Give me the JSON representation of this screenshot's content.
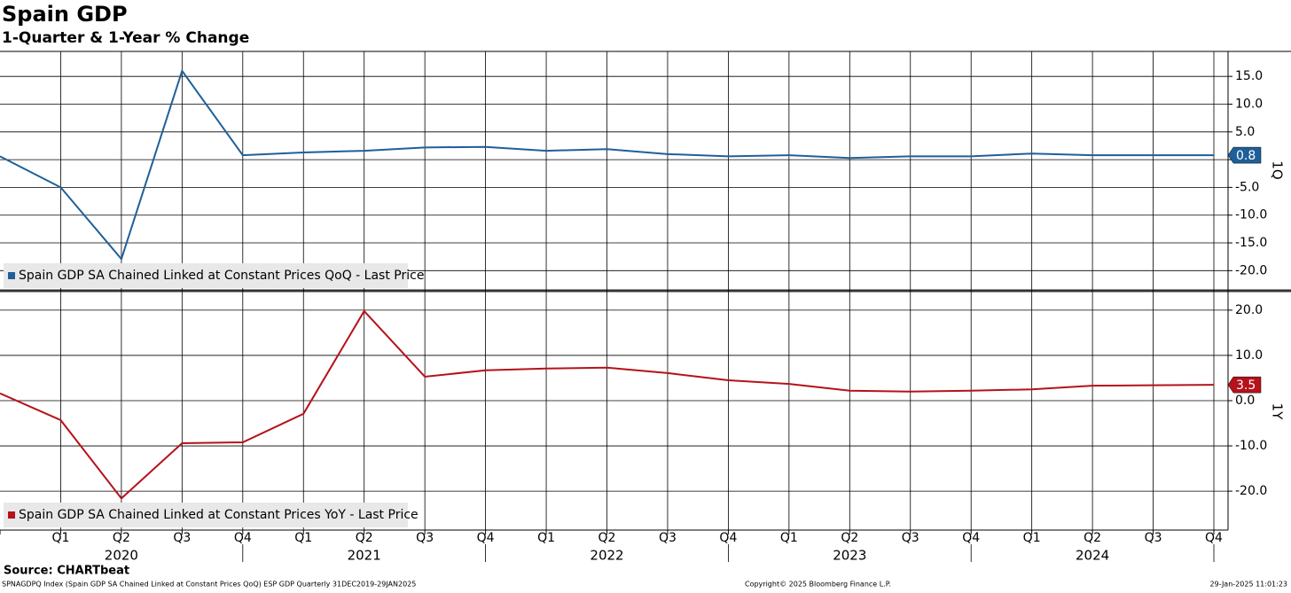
{
  "chart_data": [
    {
      "type": "line",
      "title": "Spain GDP",
      "subtitle": "1-Quarter & 1-Year % Change",
      "y_label": "1Q",
      "series": [
        {
          "name": "Spain GDP SA Chained Linked at Constant Prices QoQ - Last Price",
          "color": "#1f5f99",
          "values": [
            0.6,
            -5.0,
            -17.9,
            16.0,
            0.8,
            1.3,
            1.6,
            2.2,
            2.3,
            1.6,
            1.9,
            1.0,
            0.6,
            0.8,
            0.3,
            0.6,
            0.6,
            1.1,
            0.8,
            0.8,
            0.8
          ]
        }
      ],
      "ylim": [
        -23.3,
        19.5
      ],
      "yticks": [
        {
          "value": -20,
          "label": "-20.0"
        },
        {
          "value": -15,
          "label": "-15.0"
        },
        {
          "value": -10,
          "label": "-10.0"
        },
        {
          "value": -5,
          "label": "-5.0"
        },
        {
          "value": 0,
          "label": "0.0"
        },
        {
          "value": 5,
          "label": "5.0"
        },
        {
          "value": 10,
          "label": "10.0"
        },
        {
          "value": 15,
          "label": "15.0"
        }
      ],
      "grid": true
    },
    {
      "type": "line",
      "y_label": "1Y",
      "categories": [
        null,
        "Q1",
        "Q2",
        "Q3",
        "Q4",
        "Q1",
        "Q2",
        "Q3",
        "Q4",
        "Q1",
        "Q2",
        "Q3",
        "Q4",
        "Q1",
        "Q2",
        "Q3",
        "Q4",
        "Q1",
        "Q2",
        "Q3",
        "Q4"
      ],
      "years": [
        "2020",
        "2021",
        "2022",
        "2023",
        "2024"
      ],
      "series": [
        {
          "name": "Spain GDP SA Chained Linked at Constant Prices YoY - Last Price",
          "color": "#b5121b",
          "values": [
            1.6,
            -4.3,
            -21.6,
            -9.4,
            -9.2,
            -2.9,
            19.8,
            5.3,
            6.7,
            7.1,
            7.3,
            6.1,
            4.5,
            3.7,
            2.2,
            2.0,
            2.2,
            2.5,
            3.3,
            3.4,
            3.5
          ]
        }
      ],
      "ylim": [
        -28.6,
        23.9
      ],
      "yticks": [
        {
          "value": -20,
          "label": "-20.0"
        },
        {
          "value": -10,
          "label": "-10.0"
        },
        {
          "value": 0,
          "label": "0.0"
        },
        {
          "value": 10,
          "label": "10.0"
        },
        {
          "value": 20,
          "label": "20.0"
        }
      ],
      "grid": true
    }
  ],
  "footer": {
    "source": "Source: CHARTbeat",
    "index": "SPNAGDPQ Index (Spain GDP SA Chained Linked at Constant Prices QoQ) ESP GDP  Quarterly 31DEC2019-29JAN2025",
    "copyright": "Copyright© 2025 Bloomberg Finance L.P.",
    "timestamp": "29-Jan-2025 11:01:23"
  }
}
